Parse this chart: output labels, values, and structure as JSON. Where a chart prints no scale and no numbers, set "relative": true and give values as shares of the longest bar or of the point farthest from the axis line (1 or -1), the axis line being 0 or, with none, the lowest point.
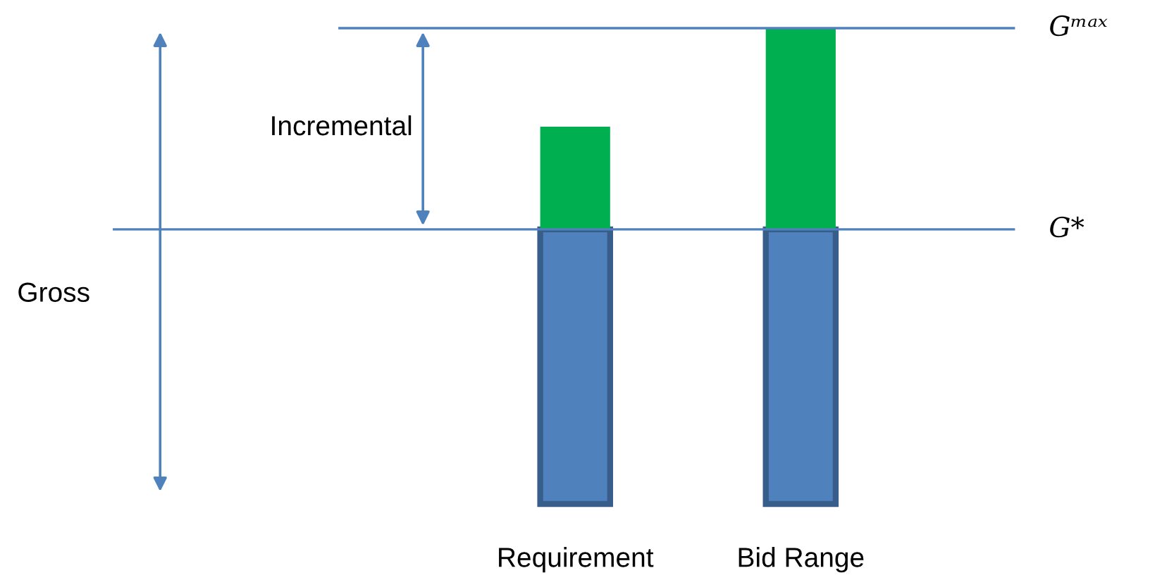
{
  "chart_data": {
    "type": "bar",
    "stacked": true,
    "relative": true,
    "categories": [
      "Requirement",
      "Bid Range"
    ],
    "series": [
      {
        "color": "#4f81bd",
        "values": [
          0.577,
          0.577
        ]
      },
      {
        "color": "#00b050",
        "values": [
          0.216,
          0.423
        ]
      }
    ],
    "ref_lines": [
      {
        "axis": "y",
        "value": 0.577,
        "label": "G*",
        "color": "#4f81bd"
      },
      {
        "axis": "y",
        "value": 1.0,
        "label": "Gᵐᵃˣ",
        "color": "#4f81bd"
      }
    ],
    "annotations": [
      "Gross",
      "Incremental"
    ],
    "grid": false,
    "legend": false
  }
}
